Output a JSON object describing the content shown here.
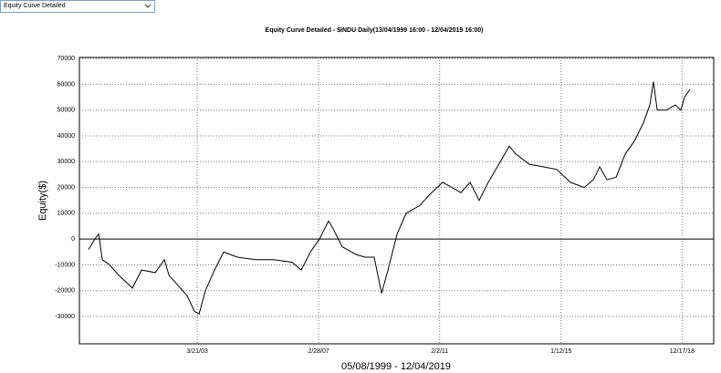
{
  "toolbar": {
    "view": "Equity Curve Detailed"
  },
  "chart_data": {
    "type": "line",
    "title": "Equity Curve Detailed - $INDU Daily(13/04/1999 16:00 - 12/04/2019 16:00)",
    "x_label": "05/08/1999 - 12/04/2019",
    "y_label": "Equity($)",
    "x": [
      "9/10/99",
      "11/24/99",
      "1/7/00",
      "2/20/00",
      "5/16/00",
      "9/2/00",
      "2/11/01",
      "5/30/01",
      "11/9/01",
      "2/25/02",
      "4/20/02",
      "8/6/02",
      "11/22/02",
      "2/17/03",
      "4/12/03",
      "6/27/03",
      "10/13/03",
      "1/29/04",
      "7/9/04",
      "2/11/05",
      "9/16/05",
      "4/20/06",
      "8/6/06",
      "11/22/06",
      "3/10/07",
      "6/26/07",
      "8/19/07",
      "12/5/07",
      "5/16/08",
      "9/1/08",
      "12/18/08",
      "3/15/09",
      "5/30/09",
      "9/15/09",
      "1/1/10",
      "6/12/10",
      "9/28/10",
      "3/10/11",
      "6/27/11",
      "10/13/11",
      "1/29/12",
      "5/16/12",
      "9/1/12",
      "12/18/12",
      "5/8/13",
      "7/23/13",
      "1/1/14",
      "6/12/14",
      "11/22/14",
      "5/3/15",
      "10/13/15",
      "1/29/16",
      "4/14/16",
      "7/9/16",
      "10/26/16",
      "2/11/17",
      "5/30/17",
      "9/15/17",
      "11/29/17",
      "1/12/18",
      "2/25/18",
      "6/12/18",
      "9/28/18",
      "12/2/18",
      "1/15/19",
      "3/20/19"
    ],
    "series": [
      {
        "name": "Equity",
        "color": "#000000",
        "values": [
          -4000,
          0,
          2000,
          -8000,
          -10000,
          -14000,
          -19000,
          -12000,
          -13000,
          -8000,
          -14000,
          -18000,
          -22000,
          -28000,
          -29000,
          -20000,
          -12000,
          -5000,
          -7000,
          -8000,
          -8000,
          -9000,
          -12000,
          -5000,
          0,
          7000,
          4000,
          -3000,
          -6000,
          -7000,
          -7000,
          -21000,
          -12000,
          2000,
          10000,
          13000,
          17000,
          22000,
          20000,
          18000,
          22000,
          15000,
          22000,
          28000,
          36000,
          33000,
          29000,
          28000,
          27000,
          22000,
          20000,
          23000,
          28000,
          23000,
          24000,
          33000,
          38000,
          45000,
          52000,
          61000,
          50000,
          50000,
          52000,
          50000,
          55000,
          58000
        ]
      }
    ],
    "xlim": [
      "5/24/99",
      "12/27/19"
    ],
    "xticks": [
      "3/21/03",
      "2/28/07",
      "2/2/11",
      "1/12/15",
      "12/17/18"
    ],
    "ylim": [
      -40600,
      70400
    ],
    "yticks": [
      -30000,
      -20000,
      -10000,
      0,
      10000,
      20000,
      30000,
      40000,
      50000,
      60000,
      70000
    ],
    "grid": true
  }
}
